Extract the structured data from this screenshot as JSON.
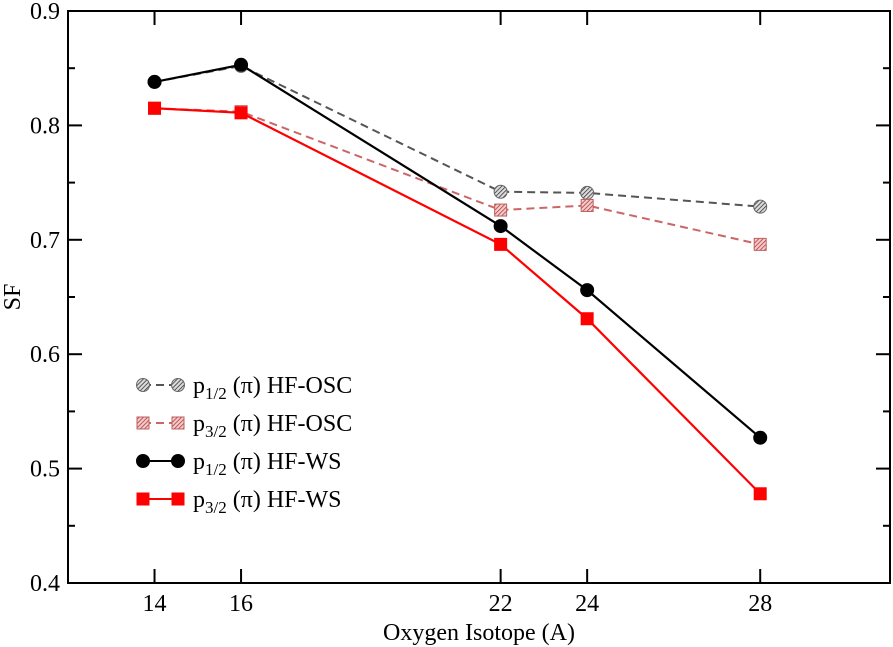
{
  "chart_data": {
    "type": "line",
    "title": "",
    "xlabel": "Oxygen Isotope (A)",
    "ylabel": "SF",
    "xlim": [
      12,
      31
    ],
    "ylim": [
      0.4,
      0.9
    ],
    "x_ticks": [
      14,
      16,
      22,
      24,
      28
    ],
    "x_tick_labels": [
      "14",
      "16",
      "22",
      "24",
      "28"
    ],
    "y_ticks": [
      0.4,
      0.5,
      0.6,
      0.7,
      0.8,
      0.9
    ],
    "y_tick_labels": [
      "0.4",
      "0.5",
      "0.6",
      "0.7",
      "0.8",
      "0.9"
    ],
    "grid": false,
    "legend_position": "bottom-left",
    "x": [
      14,
      16,
      22,
      24,
      28
    ],
    "series": [
      {
        "label_main": "p",
        "label_sub": "1/2",
        "label_rest": " (π) HF-OSC",
        "values": [
          0.838,
          0.852,
          0.742,
          0.741,
          0.729
        ],
        "color": "#555555",
        "marker": "circle",
        "dashed": true,
        "hatched": true
      },
      {
        "label_main": "p",
        "label_sub": "3/2",
        "label_rest": " (π) HF-OSC",
        "values": [
          0.815,
          0.812,
          0.726,
          0.73,
          0.696
        ],
        "color": "#cc6666",
        "marker": "square",
        "dashed": true,
        "hatched": true
      },
      {
        "label_main": "p",
        "label_sub": "1/2",
        "label_rest": " (π) HF-WS",
        "values": [
          0.838,
          0.853,
          0.712,
          0.656,
          0.527
        ],
        "color": "#000000",
        "marker": "circle",
        "dashed": false,
        "hatched": false
      },
      {
        "label_main": "p",
        "label_sub": "3/2",
        "label_rest": " (π) HF-WS",
        "values": [
          0.815,
          0.811,
          0.696,
          0.631,
          0.478
        ],
        "color": "#ff0000",
        "marker": "square",
        "dashed": false,
        "hatched": false
      }
    ]
  }
}
